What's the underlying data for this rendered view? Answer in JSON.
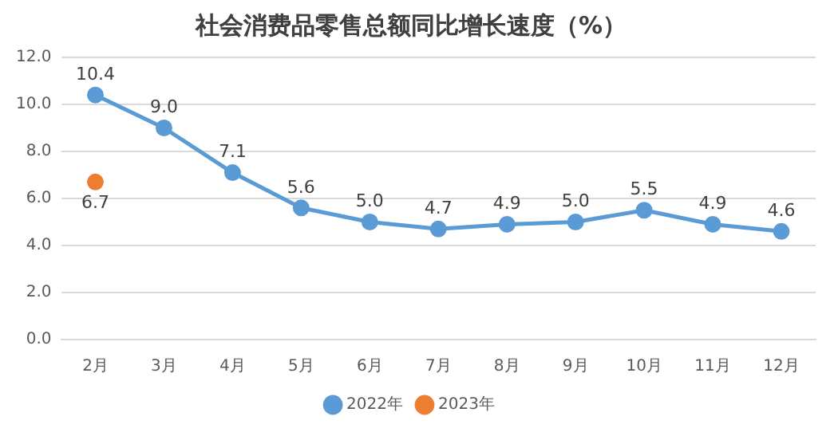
{
  "chart_data": {
    "type": "line",
    "title": "社会消费品零售总额同比增长速度（%）",
    "categories": [
      "2月",
      "3月",
      "4月",
      "5月",
      "6月",
      "7月",
      "8月",
      "9月",
      "10月",
      "11月",
      "12月"
    ],
    "series": [
      {
        "name": "2022年",
        "color": "#5b9bd5",
        "values": [
          10.4,
          9.0,
          7.1,
          5.6,
          5.0,
          4.7,
          4.9,
          5.0,
          5.5,
          4.9,
          4.6
        ],
        "value_labels": [
          "10.4",
          "9.0",
          "7.1",
          "5.6",
          "5.0",
          "4.7",
          "4.9",
          "5.0",
          "5.5",
          "4.9",
          "4.6"
        ]
      },
      {
        "name": "2023年",
        "color": "#ed7d31",
        "values": [
          6.7,
          null,
          null,
          null,
          null,
          null,
          null,
          null,
          null,
          null,
          null
        ],
        "value_labels": [
          "6.7",
          null,
          null,
          null,
          null,
          null,
          null,
          null,
          null,
          null,
          null
        ]
      }
    ],
    "ylim": [
      0,
      12
    ],
    "yticks": [
      {
        "value": 0,
        "label": "0.0"
      },
      {
        "value": 2,
        "label": "2.0"
      },
      {
        "value": 4,
        "label": "4.0"
      },
      {
        "value": 6,
        "label": "6.0"
      },
      {
        "value": 8,
        "label": "8.0"
      },
      {
        "value": 10,
        "label": "10.0"
      },
      {
        "value": 12,
        "label": "12.0"
      }
    ],
    "grid": "y",
    "legend": "bottom",
    "marker": "circle",
    "line_style": "solid"
  }
}
